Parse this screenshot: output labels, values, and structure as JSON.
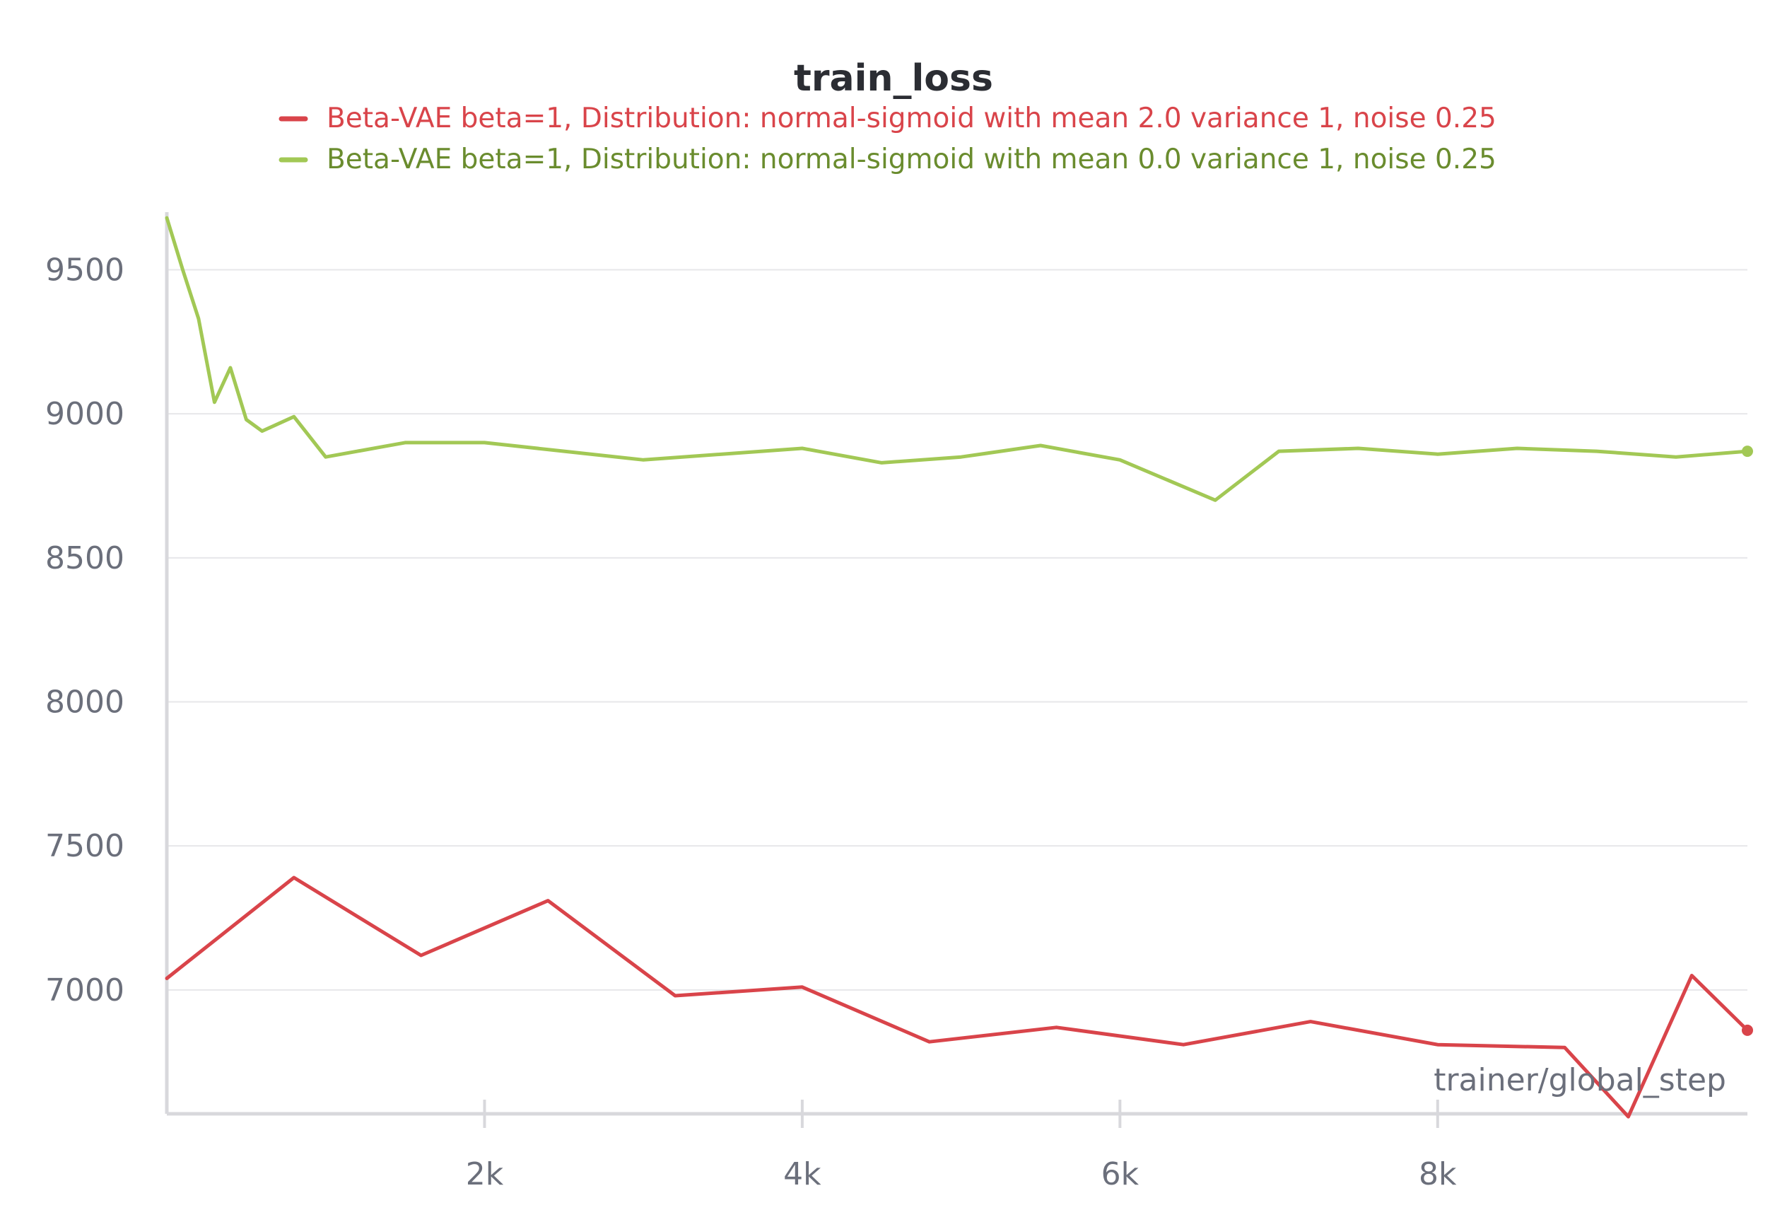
{
  "chart_data": {
    "type": "line",
    "title": "train_loss",
    "xlabel": "trainer/global_step",
    "ylabel": "",
    "xlim": [
      0,
      9950
    ],
    "ylim": [
      6570,
      9700
    ],
    "x_ticks": [
      2000,
      4000,
      6000,
      8000
    ],
    "x_tick_labels": [
      "2k",
      "4k",
      "6k",
      "8k"
    ],
    "y_ticks": [
      7000,
      7500,
      8000,
      8500,
      9000,
      9500
    ],
    "y_tick_labels": [
      "7000",
      "7500",
      "8000",
      "8500",
      "9000",
      "9500"
    ],
    "grid": true,
    "legend_position": "top",
    "series": [
      {
        "name": "Beta-VAE beta=1, Distribution: normal-sigmoid with mean 2.0 variance 1, noise 0.25",
        "color": "#d9444a",
        "x": [
          0,
          800,
          1600,
          2400,
          3200,
          4000,
          4800,
          5600,
          6400,
          7200,
          8000,
          8800,
          9200,
          9600,
          9950
        ],
        "y": [
          7040,
          7390,
          7120,
          7310,
          6980,
          7010,
          6820,
          6870,
          6810,
          6890,
          6810,
          6800,
          6560,
          7050,
          6860
        ]
      },
      {
        "name": "Beta-VAE beta=1, Distribution: normal-sigmoid with mean 0.0 variance 1, noise 0.25",
        "color": "#a2c855",
        "x": [
          0,
          100,
          200,
          300,
          400,
          500,
          600,
          800,
          1000,
          1500,
          2000,
          3000,
          4000,
          4500,
          5000,
          5500,
          6000,
          6600,
          7000,
          7500,
          8000,
          8500,
          9000,
          9500,
          9950
        ],
        "y": [
          9680,
          9500,
          9330,
          9040,
          9160,
          8980,
          8940,
          8990,
          8850,
          8900,
          8900,
          8840,
          8880,
          8830,
          8850,
          8890,
          8840,
          8700,
          8870,
          8880,
          8860,
          8880,
          8870,
          8850,
          8870
        ]
      }
    ]
  }
}
